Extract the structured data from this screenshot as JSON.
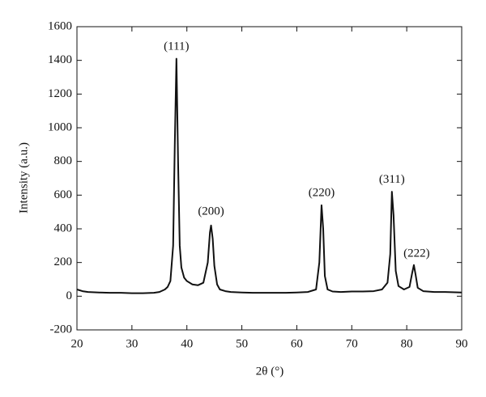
{
  "chart_data": {
    "type": "line",
    "x_label": "2θ (°)",
    "y_label": "Intensity (a.u.)",
    "xlim": [
      20,
      90
    ],
    "xticks": [
      20,
      30,
      40,
      50,
      60,
      70,
      80,
      90
    ],
    "ylim": [
      -200,
      1600
    ],
    "yticks": [
      -200,
      0,
      200,
      400,
      600,
      800,
      1000,
      1200,
      1400,
      1600
    ],
    "grid": false,
    "series": [
      {
        "color": "#111111",
        "x": [
          20,
          21,
          22,
          24,
          26,
          28,
          30,
          32,
          34,
          35,
          36,
          36.5,
          37,
          37.5,
          37.8,
          38.1,
          38.4,
          38.7,
          39,
          39.5,
          40,
          41,
          42,
          43,
          43.8,
          44.2,
          44.4,
          44.7,
          45,
          45.5,
          46,
          47,
          48,
          50,
          52,
          54,
          56,
          58,
          60,
          62,
          63.5,
          64.1,
          64.5,
          64.8,
          65.1,
          65.6,
          66.5,
          68,
          70,
          72,
          74,
          75.5,
          76.5,
          77,
          77.3,
          77.6,
          78,
          78.5,
          79.5,
          80.5,
          81,
          81.3,
          81.6,
          82,
          83,
          85,
          87,
          90
        ],
        "values": [
          40,
          30,
          25,
          22,
          20,
          20,
          18,
          18,
          20,
          25,
          40,
          55,
          90,
          300,
          900,
          1410,
          800,
          300,
          170,
          110,
          90,
          70,
          65,
          80,
          200,
          380,
          420,
          340,
          180,
          70,
          40,
          30,
          25,
          22,
          20,
          20,
          20,
          20,
          22,
          25,
          40,
          200,
          540,
          400,
          120,
          40,
          28,
          25,
          28,
          28,
          30,
          40,
          80,
          250,
          620,
          480,
          150,
          60,
          40,
          55,
          140,
          185,
          130,
          50,
          30,
          25,
          25,
          22
        ]
      }
    ],
    "annotations": [
      {
        "text": "(111)",
        "x": 38.1,
        "y": 1480
      },
      {
        "text": "(200)",
        "x": 44.4,
        "y": 500
      },
      {
        "text": "(220)",
        "x": 64.5,
        "y": 610
      },
      {
        "text": "(311)",
        "x": 77.3,
        "y": 690
      },
      {
        "text": "(222)",
        "x": 81.8,
        "y": 250
      }
    ]
  }
}
